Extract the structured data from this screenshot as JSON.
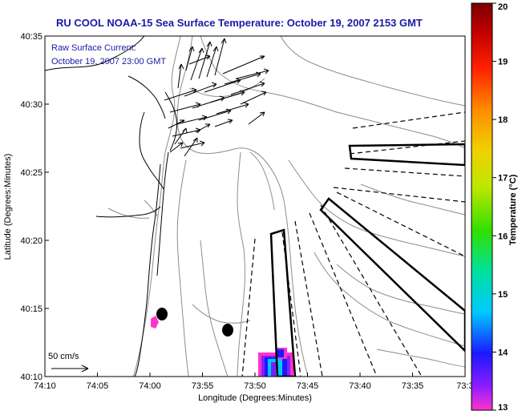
{
  "title": "RU COOL  NOAA-15  Sea Surface Temperature:  October 19, 2007 2153 GMT",
  "annotation": {
    "line1": "Raw Surface Current:",
    "line2": "October 19, 2007 23:00 GMT"
  },
  "scale_label": "50 cm/s",
  "xlabel": "Longitude (Degrees:Minutes)",
  "ylabel": "Latitude (Degrees:Minutes)",
  "x_ticks": [
    "74:10",
    "74:05",
    "74:00",
    "73:55",
    "73:50",
    "73:45",
    "73:40",
    "73:35",
    "73:3"
  ],
  "y_ticks": [
    "40:35",
    "40:30",
    "40:25",
    "40:20",
    "40:15",
    "40:10"
  ],
  "colorbar": {
    "label": "Temperature (°C)",
    "ticks": [
      "20",
      "19",
      "18",
      "17",
      "16",
      "15",
      "14",
      "13"
    ],
    "min": 13,
    "max": 20,
    "colors": [
      "#ff33cc",
      "#7a1cff",
      "#1a1aff",
      "#00c8ff",
      "#00e08a",
      "#60e000",
      "#e6e600",
      "#ffaa00",
      "#ff3300",
      "#b00000",
      "#7a0000"
    ]
  },
  "colors": {
    "title": "#1a1aa6",
    "contour": "#8c8c8c",
    "coastline": "#000000",
    "vector": "#000000"
  }
}
